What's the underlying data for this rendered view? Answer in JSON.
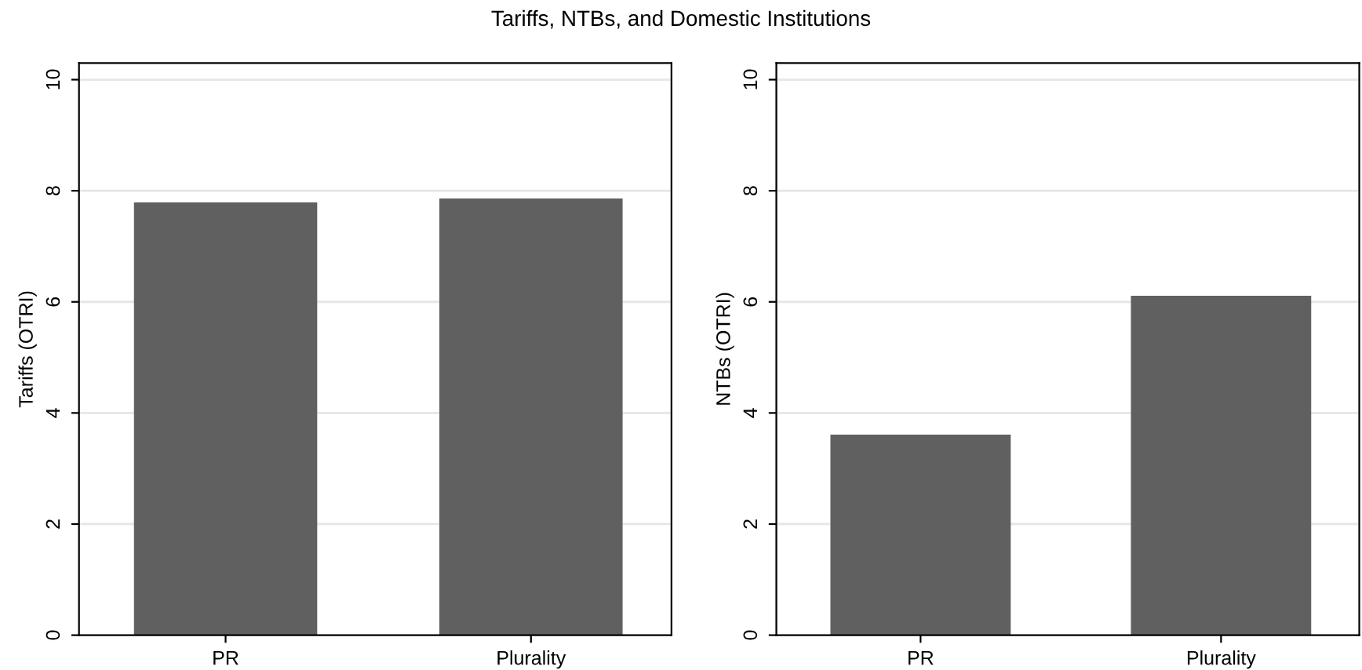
{
  "chart_data": [
    {
      "type": "bar",
      "title": "Tariffs, NTBs, and Domestic Institutions",
      "ylabel": "Tariffs (OTRI)",
      "categories": [
        "PR",
        "Plurality"
      ],
      "values": [
        7.79,
        7.86
      ],
      "color": "#606060",
      "ylim": [
        0,
        10.3
      ],
      "yticks": [
        0,
        2,
        4,
        6,
        8,
        10
      ],
      "grid": "y",
      "legend": false
    },
    {
      "type": "bar",
      "ylabel": "NTBs (OTRI)",
      "categories": [
        "PR",
        "Plurality"
      ],
      "values": [
        3.61,
        6.11
      ],
      "color": "#606060",
      "ylim": [
        0,
        10.3
      ],
      "yticks": [
        0,
        2,
        4,
        6,
        8,
        10
      ],
      "grid": "y",
      "legend": false
    }
  ]
}
